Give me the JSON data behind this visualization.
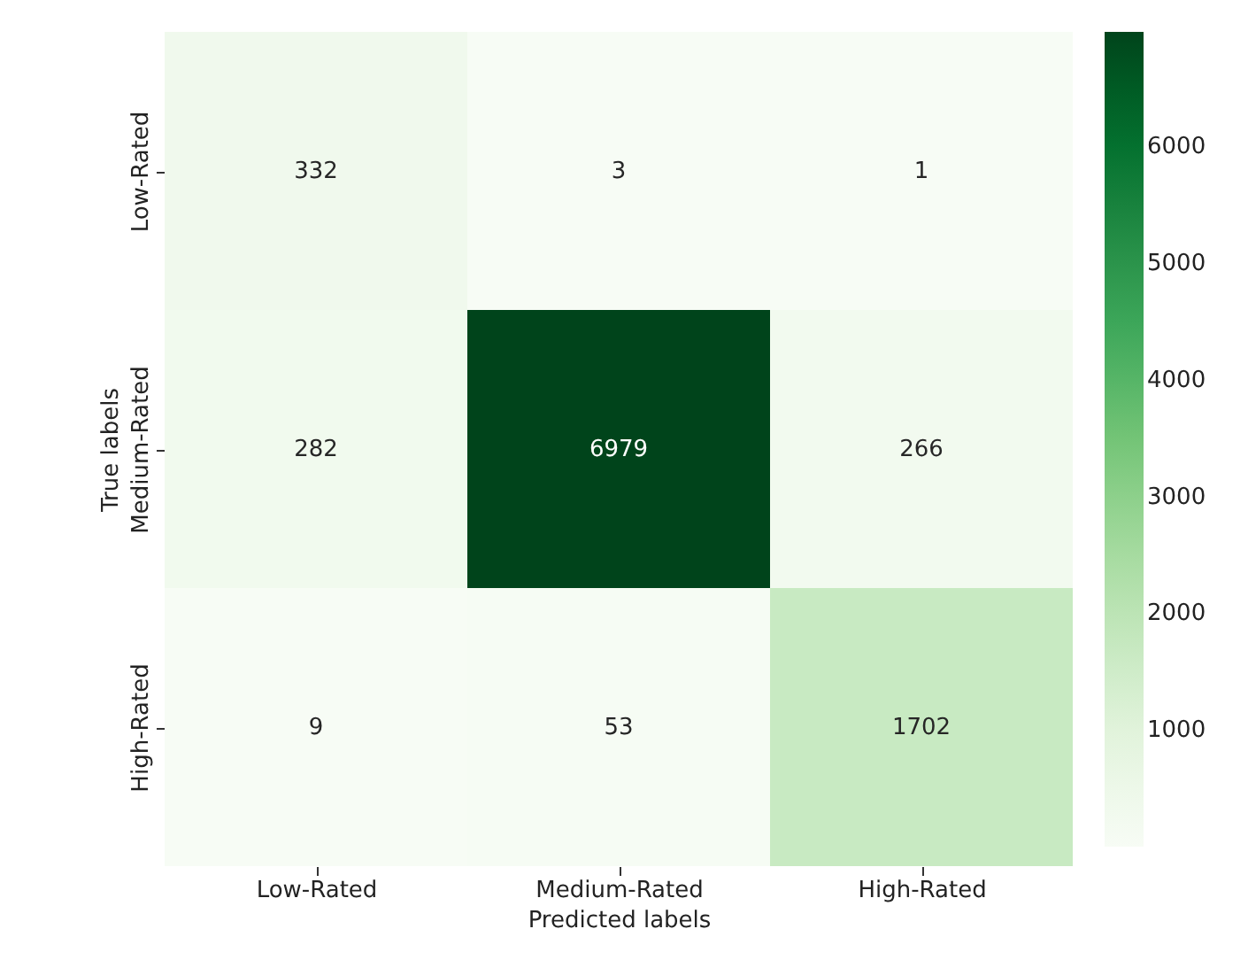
{
  "chart_data": {
    "type": "heatmap",
    "xlabel": "Predicted labels",
    "ylabel": "True labels",
    "categories": [
      "Low-Rated",
      "Medium-Rated",
      "High-Rated"
    ],
    "y_categories": [
      "Low-Rated",
      "Medium-Rated",
      "High-Rated"
    ],
    "cells": [
      [
        332,
        3,
        1
      ],
      [
        282,
        6979,
        266
      ],
      [
        9,
        53,
        1702
      ]
    ],
    "data_labels": true,
    "clim": [
      1,
      6979
    ],
    "cticks": [
      1000,
      2000,
      3000,
      4000,
      5000,
      6000
    ]
  }
}
